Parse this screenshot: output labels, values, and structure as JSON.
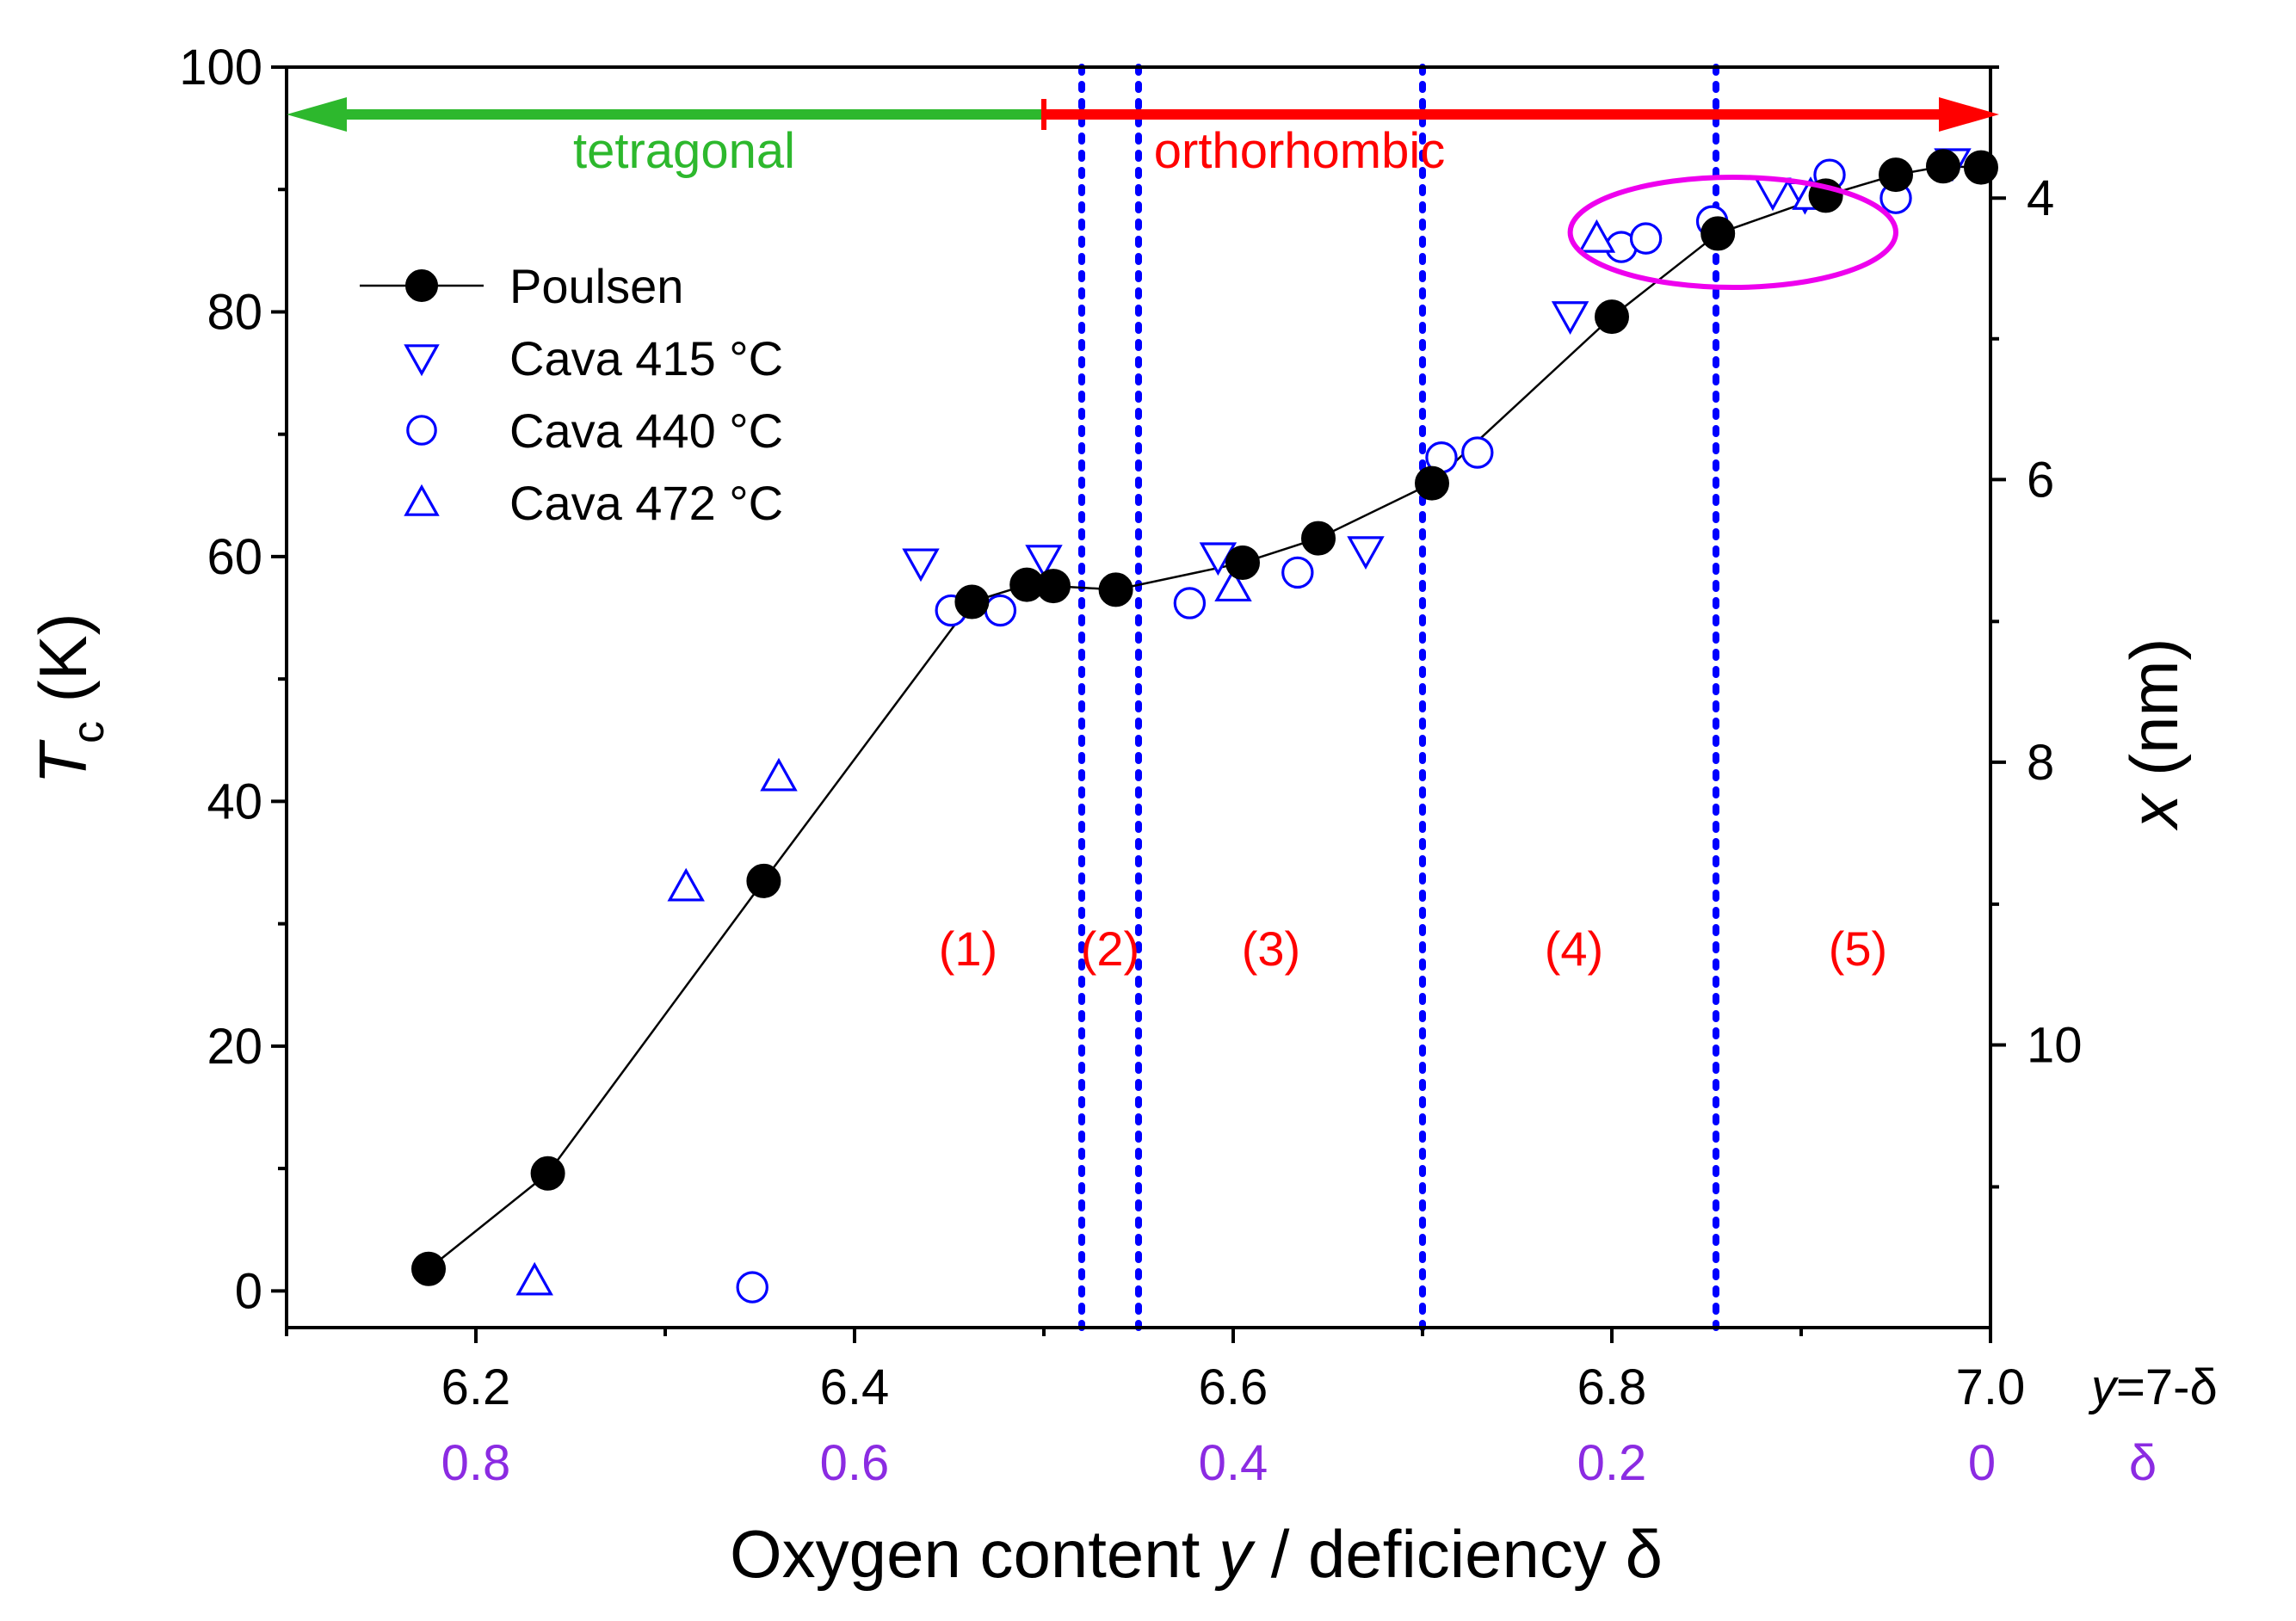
{
  "chart_data": {
    "type": "scatter",
    "xlabel_parts": [
      "Oxygen content ",
      "y",
      " / deficiency δ"
    ],
    "ylabel_main": "T",
    "ylabel_sub": "c",
    "ylabel_unit": " (K)",
    "y2label_var": "x",
    "y2label_unit": " (nm)",
    "xlim": [
      6.1,
      7.0
    ],
    "ylim": [
      -3,
      100
    ],
    "y2_ticks": [
      {
        "tc": 89.3,
        "label": "4"
      },
      {
        "tc": 66.3,
        "label": "6"
      },
      {
        "tc": 43.2,
        "label": "8"
      },
      {
        "tc": 20.1,
        "label": "10"
      }
    ],
    "x_ticks": [
      "6.2",
      "6.4",
      "6.6",
      "6.8",
      "7.0"
    ],
    "x_tick_values": [
      6.2,
      6.4,
      6.6,
      6.8,
      7.0
    ],
    "x_axis_note_parts": [
      "y",
      "=7-δ"
    ],
    "delta_ticks": [
      "0.8",
      "0.6",
      "0.4",
      "0.2",
      "0"
    ],
    "delta_axis_note": "δ",
    "y_ticks": [
      "0",
      "20",
      "40",
      "60",
      "80",
      "100"
    ],
    "y_tick_values": [
      0,
      20,
      40,
      60,
      80,
      100
    ],
    "series": [
      {
        "name": "Poulsen",
        "marker": "filled-circle",
        "color": "#000000",
        "line": true,
        "points": [
          [
            6.175,
            1.8
          ],
          [
            6.238,
            9.6
          ],
          [
            6.352,
            33.5
          ],
          [
            6.462,
            56.3
          ],
          [
            6.491,
            57.7
          ],
          [
            6.505,
            57.6
          ],
          [
            6.538,
            57.3
          ],
          [
            6.605,
            59.5
          ],
          [
            6.645,
            61.5
          ],
          [
            6.705,
            66.0
          ],
          [
            6.8,
            79.6
          ],
          [
            6.856,
            86.4
          ],
          [
            6.913,
            89.5
          ],
          [
            6.95,
            91.2
          ],
          [
            6.975,
            91.9
          ],
          [
            6.995,
            91.8
          ]
        ]
      },
      {
        "name": "Cava 415 °C",
        "marker": "triangle-down",
        "color": "#0000ff",
        "points": [
          [
            6.435,
            59.5
          ],
          [
            6.5,
            59.8
          ],
          [
            6.592,
            60.0
          ],
          [
            6.67,
            60.5
          ],
          [
            6.778,
            79.7
          ],
          [
            6.885,
            89.8
          ],
          [
            6.902,
            89.5
          ],
          [
            6.98,
            92.2
          ]
        ]
      },
      {
        "name": "Cava 440 °C",
        "marker": "open-circle",
        "color": "#0000ff",
        "points": [
          [
            6.346,
            0.3
          ],
          [
            6.451,
            55.6
          ],
          [
            6.477,
            55.6
          ],
          [
            6.577,
            56.2
          ],
          [
            6.634,
            58.7
          ],
          [
            6.71,
            68.1
          ],
          [
            6.729,
            68.5
          ],
          [
            6.805,
            85.3
          ],
          [
            6.818,
            86.0
          ],
          [
            6.853,
            87.4
          ],
          [
            6.915,
            91.2
          ],
          [
            6.95,
            89.3
          ]
        ]
      },
      {
        "name": "Cava 472 °C",
        "marker": "triangle-up",
        "color": "#0000ff",
        "points": [
          [
            6.231,
            0.8
          ],
          [
            6.311,
            33.0
          ],
          [
            6.36,
            42.0
          ],
          [
            6.6,
            57.5
          ],
          [
            6.792,
            86.0
          ],
          [
            6.905,
            89.5
          ]
        ]
      }
    ],
    "legend": [
      "Poulsen",
      "Cava 415 °C",
      "Cava 440 °C",
      "Cava 472 °C"
    ],
    "legend_position": "top-left",
    "phase_labels": {
      "tetragonal": "tetragonal",
      "orthorhombic": "orthorhombic",
      "tetragonal_range": [
        6.1,
        6.5
      ],
      "orthorhombic_range": [
        6.5,
        7.0
      ],
      "tetragonal_color": "#2db82d",
      "orthorhombic_color": "#ff0000"
    },
    "region_boundaries": [
      6.52,
      6.55,
      6.7,
      6.855
    ],
    "region_boundary_color": "#0000ff",
    "regions": [
      {
        "label": "(1)",
        "x": 6.46
      },
      {
        "label": "(2)",
        "x": 6.535
      },
      {
        "label": "(3)",
        "x": 6.62
      },
      {
        "label": "(4)",
        "x": 6.78
      },
      {
        "label": "(5)",
        "x": 6.93
      }
    ],
    "region_label_y": 28,
    "highlight_ellipse": {
      "x_center": 6.864,
      "tc_center": 86.5,
      "x_range": [
        6.778,
        6.95
      ],
      "tc_range": [
        82,
        91
      ],
      "color": "#ee00ee"
    }
  }
}
